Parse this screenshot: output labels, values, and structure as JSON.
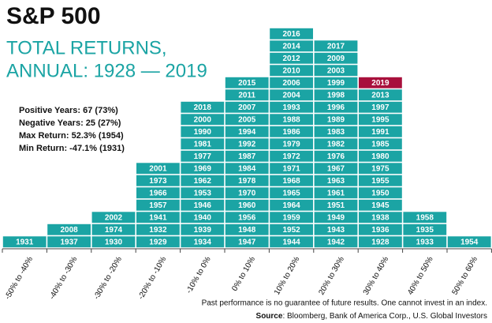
{
  "chart_data": {
    "type": "year-stack",
    "title": "S&P 500",
    "subtitle": [
      "TOTAL RETURNS,",
      "ANNUAL: 1928 — 2019"
    ],
    "annotations": [
      "Positive Years: 67 (73%)",
      "Negative Years: 25 (27%)",
      "Max Return: 52.3% (1954)",
      "Min Return: -47.1% (1931)"
    ],
    "categories": [
      "-50% to -40%",
      "-40% to -30%",
      "-30% to -20%",
      "-20% to -10%",
      "-10% to 0%",
      "0% to 10%",
      "10% to 20%",
      "20% to 30%",
      "30% to 40%",
      "40% to 50%",
      "50% to 60%"
    ],
    "years": [
      [
        1931
      ],
      [
        1937,
        2008
      ],
      [
        1930,
        1974,
        2002
      ],
      [
        1929,
        1932,
        1941,
        1957,
        1966,
        1973,
        2001
      ],
      [
        1934,
        1939,
        1940,
        1946,
        1953,
        1962,
        1969,
        1977,
        1981,
        1990,
        2000,
        2018
      ],
      [
        1947,
        1948,
        1956,
        1960,
        1970,
        1978,
        1984,
        1987,
        1992,
        1994,
        2005,
        2007,
        2011,
        2015
      ],
      [
        1944,
        1952,
        1959,
        1964,
        1965,
        1968,
        1971,
        1972,
        1979,
        1986,
        1988,
        1993,
        2004,
        2006,
        2010,
        2012,
        2014,
        2016
      ],
      [
        1942,
        1943,
        1949,
        1951,
        1961,
        1963,
        1967,
        1976,
        1982,
        1983,
        1989,
        1996,
        1998,
        1999,
        2003,
        2009,
        2017
      ],
      [
        1928,
        1936,
        1938,
        1945,
        1950,
        1955,
        1975,
        1980,
        1985,
        1991,
        1995,
        1997,
        2013,
        2019
      ],
      [
        1933,
        1935,
        1958
      ],
      [
        1954
      ]
    ],
    "color": "#1ba4a4",
    "highlight_year": 2019,
    "highlight_color": "#a8103c",
    "footnote": "Past performance is no guarantee of future results. One cannot invest in an index.",
    "source_label": "Source",
    "source": ": Bloomberg, Bank of America Corp., U.S. Global Investors"
  }
}
